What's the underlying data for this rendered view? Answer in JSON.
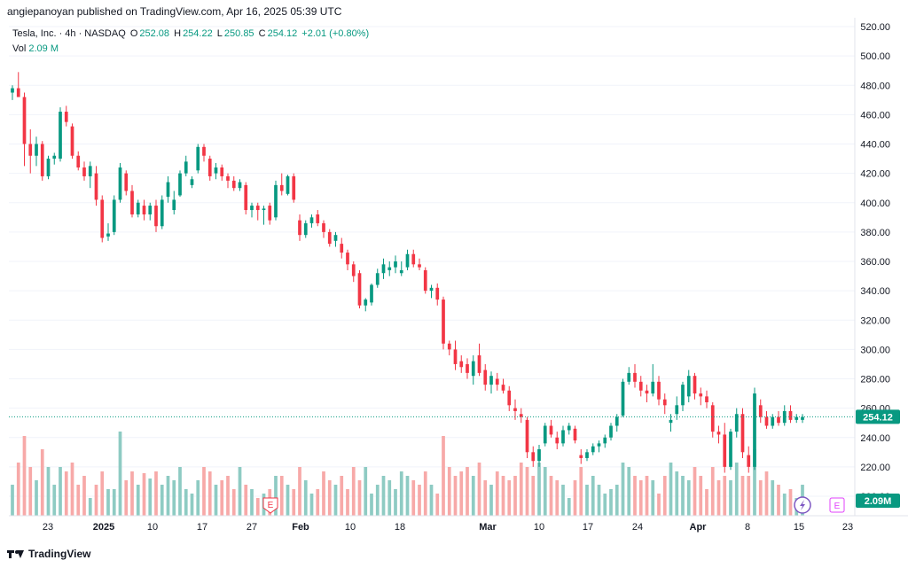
{
  "header": {
    "published": "angiepanoyan published on TradingView.com, Apr 16, 2025 05:39 UTC"
  },
  "legend": {
    "symbol": "Tesla, Inc. · 4h · NASDAQ",
    "open_label": "O",
    "open": "252.08",
    "high_label": "H",
    "high": "254.22",
    "low_label": "L",
    "low": "250.85",
    "close_label": "C",
    "close": "254.12",
    "change": "+2.01 (+0.80%)",
    "vol_label": "Vol",
    "vol_value": "2.09 M"
  },
  "footer": {
    "brand": "TradingView"
  },
  "colors": {
    "up": "#089981",
    "down": "#f23645",
    "vol_up": "#8ecbc3",
    "vol_down": "#f7a9a8",
    "grid": "#f0f3fa"
  },
  "events": {
    "earnings_marker": "E",
    "dividend_marker": "E"
  },
  "chart_data": {
    "type": "candlestick",
    "symbol": "TSLA",
    "interval": "4h",
    "y_axis_ticks": [
      "520.00",
      "500.00",
      "480.00",
      "460.00",
      "440.00",
      "420.00",
      "400.00",
      "380.00",
      "360.00",
      "340.00",
      "320.00",
      "300.00",
      "280.00",
      "260.00",
      "240.00",
      "220.00",
      "200.00"
    ],
    "ylim": [
      200,
      520
    ],
    "x_axis_ticks": [
      "23",
      "2025",
      "10",
      "17",
      "27",
      "Feb",
      "10",
      "18",
      "Mar",
      "10",
      "17",
      "24",
      "Apr",
      "8",
      "15",
      "23"
    ],
    "last_price_label": "254.12",
    "last_volume_label": "2.09M",
    "candles": [
      {
        "o": 475,
        "h": 480,
        "l": 470,
        "c": 478
      },
      {
        "o": 478,
        "h": 489,
        "l": 472,
        "c": 472
      },
      {
        "o": 472,
        "h": 475,
        "l": 425,
        "c": 440
      },
      {
        "o": 440,
        "h": 450,
        "l": 420,
        "c": 432
      },
      {
        "o": 432,
        "h": 445,
        "l": 425,
        "c": 440
      },
      {
        "o": 440,
        "h": 442,
        "l": 415,
        "c": 418
      },
      {
        "o": 418,
        "h": 432,
        "l": 416,
        "c": 430
      },
      {
        "o": 430,
        "h": 434,
        "l": 426,
        "c": 432
      },
      {
        "o": 430,
        "h": 465,
        "l": 428,
        "c": 462
      },
      {
        "o": 462,
        "h": 466,
        "l": 452,
        "c": 455
      },
      {
        "o": 452,
        "h": 454,
        "l": 430,
        "c": 432
      },
      {
        "o": 432,
        "h": 435,
        "l": 422,
        "c": 424
      },
      {
        "o": 424,
        "h": 428,
        "l": 415,
        "c": 418
      },
      {
        "o": 418,
        "h": 428,
        "l": 410,
        "c": 425
      },
      {
        "o": 420,
        "h": 425,
        "l": 398,
        "c": 402
      },
      {
        "o": 402,
        "h": 405,
        "l": 373,
        "c": 376
      },
      {
        "o": 377,
        "h": 386,
        "l": 374,
        "c": 379
      },
      {
        "o": 380,
        "h": 405,
        "l": 378,
        "c": 402
      },
      {
        "o": 402,
        "h": 427,
        "l": 400,
        "c": 424
      },
      {
        "o": 420,
        "h": 422,
        "l": 405,
        "c": 408
      },
      {
        "o": 408,
        "h": 412,
        "l": 390,
        "c": 392
      },
      {
        "o": 392,
        "h": 402,
        "l": 390,
        "c": 400
      },
      {
        "o": 398,
        "h": 402,
        "l": 388,
        "c": 392
      },
      {
        "o": 392,
        "h": 400,
        "l": 388,
        "c": 398
      },
      {
        "o": 398,
        "h": 402,
        "l": 380,
        "c": 384
      },
      {
        "o": 384,
        "h": 405,
        "l": 382,
        "c": 402
      },
      {
        "o": 404,
        "h": 418,
        "l": 400,
        "c": 414
      },
      {
        "o": 395,
        "h": 408,
        "l": 392,
        "c": 402
      },
      {
        "o": 405,
        "h": 422,
        "l": 404,
        "c": 420
      },
      {
        "o": 420,
        "h": 432,
        "l": 418,
        "c": 428
      },
      {
        "o": 412,
        "h": 418,
        "l": 410,
        "c": 416
      },
      {
        "o": 422,
        "h": 440,
        "l": 420,
        "c": 438
      },
      {
        "o": 438,
        "h": 440,
        "l": 428,
        "c": 432
      },
      {
        "o": 430,
        "h": 432,
        "l": 415,
        "c": 418
      },
      {
        "o": 420,
        "h": 427,
        "l": 416,
        "c": 424
      },
      {
        "o": 424,
        "h": 426,
        "l": 415,
        "c": 418
      },
      {
        "o": 418,
        "h": 420,
        "l": 410,
        "c": 415
      },
      {
        "o": 415,
        "h": 418,
        "l": 408,
        "c": 410
      },
      {
        "o": 410,
        "h": 416,
        "l": 408,
        "c": 414
      },
      {
        "o": 412,
        "h": 414,
        "l": 392,
        "c": 395
      },
      {
        "o": 395,
        "h": 400,
        "l": 390,
        "c": 398
      },
      {
        "o": 398,
        "h": 400,
        "l": 388,
        "c": 395
      },
      {
        "o": 395,
        "h": 398,
        "l": 385,
        "c": 396
      },
      {
        "o": 398,
        "h": 400,
        "l": 385,
        "c": 388
      },
      {
        "o": 390,
        "h": 415,
        "l": 388,
        "c": 412
      },
      {
        "o": 412,
        "h": 420,
        "l": 405,
        "c": 408
      },
      {
        "o": 406,
        "h": 419,
        "l": 405,
        "c": 418
      },
      {
        "o": 418,
        "h": 420,
        "l": 400,
        "c": 402
      },
      {
        "o": 388,
        "h": 392,
        "l": 374,
        "c": 378
      },
      {
        "o": 378,
        "h": 388,
        "l": 376,
        "c": 386
      },
      {
        "o": 386,
        "h": 392,
        "l": 383,
        "c": 390
      },
      {
        "o": 392,
        "h": 395,
        "l": 384,
        "c": 386
      },
      {
        "o": 386,
        "h": 388,
        "l": 376,
        "c": 380
      },
      {
        "o": 380,
        "h": 382,
        "l": 370,
        "c": 372
      },
      {
        "o": 374,
        "h": 380,
        "l": 370,
        "c": 378
      },
      {
        "o": 372,
        "h": 376,
        "l": 362,
        "c": 366
      },
      {
        "o": 366,
        "h": 368,
        "l": 354,
        "c": 358
      },
      {
        "o": 358,
        "h": 360,
        "l": 346,
        "c": 350
      },
      {
        "o": 352,
        "h": 354,
        "l": 328,
        "c": 330
      },
      {
        "o": 330,
        "h": 335,
        "l": 326,
        "c": 334
      },
      {
        "o": 332,
        "h": 345,
        "l": 330,
        "c": 344
      },
      {
        "o": 344,
        "h": 355,
        "l": 342,
        "c": 352
      },
      {
        "o": 352,
        "h": 362,
        "l": 348,
        "c": 358
      },
      {
        "o": 354,
        "h": 360,
        "l": 350,
        "c": 356
      },
      {
        "o": 356,
        "h": 364,
        "l": 352,
        "c": 360
      },
      {
        "o": 352,
        "h": 360,
        "l": 350,
        "c": 354
      },
      {
        "o": 356,
        "h": 368,
        "l": 354,
        "c": 365
      },
      {
        "o": 365,
        "h": 368,
        "l": 356,
        "c": 358
      },
      {
        "o": 358,
        "h": 362,
        "l": 354,
        "c": 356
      },
      {
        "o": 354,
        "h": 356,
        "l": 338,
        "c": 340
      },
      {
        "o": 340,
        "h": 344,
        "l": 335,
        "c": 342
      },
      {
        "o": 342,
        "h": 345,
        "l": 330,
        "c": 334
      },
      {
        "o": 334,
        "h": 336,
        "l": 300,
        "c": 304
      },
      {
        "o": 304,
        "h": 306,
        "l": 296,
        "c": 300
      },
      {
        "o": 300,
        "h": 306,
        "l": 286,
        "c": 290
      },
      {
        "o": 292,
        "h": 296,
        "l": 284,
        "c": 288
      },
      {
        "o": 290,
        "h": 294,
        "l": 280,
        "c": 284
      },
      {
        "o": 282,
        "h": 296,
        "l": 276,
        "c": 292
      },
      {
        "o": 296,
        "h": 304,
        "l": 282,
        "c": 284
      },
      {
        "o": 286,
        "h": 290,
        "l": 272,
        "c": 276
      },
      {
        "o": 276,
        "h": 285,
        "l": 270,
        "c": 282
      },
      {
        "o": 280,
        "h": 284,
        "l": 272,
        "c": 276
      },
      {
        "o": 276,
        "h": 280,
        "l": 270,
        "c": 272
      },
      {
        "o": 272,
        "h": 275,
        "l": 258,
        "c": 262
      },
      {
        "o": 260,
        "h": 266,
        "l": 252,
        "c": 258
      },
      {
        "o": 256,
        "h": 260,
        "l": 250,
        "c": 254
      },
      {
        "o": 252,
        "h": 254,
        "l": 226,
        "c": 230
      },
      {
        "o": 230,
        "h": 234,
        "l": 220,
        "c": 224
      },
      {
        "o": 224,
        "h": 235,
        "l": 220,
        "c": 232
      },
      {
        "o": 236,
        "h": 250,
        "l": 234,
        "c": 248
      },
      {
        "o": 248,
        "h": 252,
        "l": 240,
        "c": 242
      },
      {
        "o": 240,
        "h": 244,
        "l": 232,
        "c": 236
      },
      {
        "o": 236,
        "h": 248,
        "l": 234,
        "c": 245
      },
      {
        "o": 245,
        "h": 250,
        "l": 242,
        "c": 248
      },
      {
        "o": 246,
        "h": 248,
        "l": 236,
        "c": 238
      },
      {
        "o": 228,
        "h": 232,
        "l": 222,
        "c": 226
      },
      {
        "o": 226,
        "h": 232,
        "l": 224,
        "c": 230
      },
      {
        "o": 230,
        "h": 236,
        "l": 228,
        "c": 234
      },
      {
        "o": 234,
        "h": 238,
        "l": 230,
        "c": 236
      },
      {
        "o": 236,
        "h": 242,
        "l": 233,
        "c": 240
      },
      {
        "o": 240,
        "h": 250,
        "l": 238,
        "c": 248
      },
      {
        "o": 248,
        "h": 256,
        "l": 244,
        "c": 254
      },
      {
        "o": 255,
        "h": 280,
        "l": 254,
        "c": 278
      },
      {
        "o": 278,
        "h": 288,
        "l": 276,
        "c": 284
      },
      {
        "o": 284,
        "h": 290,
        "l": 274,
        "c": 278
      },
      {
        "o": 278,
        "h": 282,
        "l": 268,
        "c": 272
      },
      {
        "o": 272,
        "h": 276,
        "l": 264,
        "c": 270
      },
      {
        "o": 270,
        "h": 290,
        "l": 268,
        "c": 278
      },
      {
        "o": 278,
        "h": 282,
        "l": 262,
        "c": 266
      },
      {
        "o": 266,
        "h": 270,
        "l": 256,
        "c": 262
      },
      {
        "o": 250,
        "h": 256,
        "l": 244,
        "c": 252
      },
      {
        "o": 256,
        "h": 268,
        "l": 252,
        "c": 262
      },
      {
        "o": 262,
        "h": 278,
        "l": 258,
        "c": 276
      },
      {
        "o": 268,
        "h": 286,
        "l": 264,
        "c": 282
      },
      {
        "o": 282,
        "h": 284,
        "l": 266,
        "c": 270
      },
      {
        "o": 270,
        "h": 274,
        "l": 262,
        "c": 268
      },
      {
        "o": 268,
        "h": 272,
        "l": 260,
        "c": 264
      },
      {
        "o": 262,
        "h": 264,
        "l": 240,
        "c": 244
      },
      {
        "o": 244,
        "h": 248,
        "l": 236,
        "c": 242
      },
      {
        "o": 242,
        "h": 250,
        "l": 216,
        "c": 220
      },
      {
        "o": 220,
        "h": 246,
        "l": 218,
        "c": 244
      },
      {
        "o": 244,
        "h": 260,
        "l": 240,
        "c": 256
      },
      {
        "o": 256,
        "h": 260,
        "l": 226,
        "c": 230
      },
      {
        "o": 228,
        "h": 234,
        "l": 216,
        "c": 220
      },
      {
        "o": 220,
        "h": 274,
        "l": 218,
        "c": 270
      },
      {
        "o": 262,
        "h": 266,
        "l": 250,
        "c": 254
      },
      {
        "o": 254,
        "h": 258,
        "l": 246,
        "c": 248
      },
      {
        "o": 248,
        "h": 256,
        "l": 246,
        "c": 254
      },
      {
        "o": 254,
        "h": 258,
        "l": 248,
        "c": 250
      },
      {
        "o": 250,
        "h": 262,
        "l": 248,
        "c": 258
      },
      {
        "o": 258,
        "h": 262,
        "l": 250,
        "c": 252
      },
      {
        "o": 252,
        "h": 256,
        "l": 250,
        "c": 254
      },
      {
        "o": 252,
        "h": 256,
        "l": 250,
        "c": 254
      }
    ],
    "volume": [
      35,
      60,
      90,
      55,
      40,
      75,
      55,
      35,
      55,
      50,
      60,
      35,
      45,
      20,
      35,
      50,
      30,
      30,
      95,
      40,
      50,
      35,
      48,
      42,
      50,
      35,
      45,
      40,
      55,
      30,
      25,
      40,
      55,
      50,
      35,
      40,
      45,
      30,
      55,
      35,
      30,
      20,
      25,
      30,
      45,
      45,
      35,
      30,
      55,
      40,
      25,
      30,
      50,
      40,
      35,
      45,
      30,
      55,
      40,
      55,
      25,
      35,
      45,
      40,
      30,
      50,
      45,
      40,
      35,
      50,
      35,
      25,
      90,
      55,
      45,
      50,
      55,
      45,
      60,
      40,
      35,
      50,
      45,
      40,
      45,
      60,
      55,
      45,
      60,
      55,
      45,
      40,
      35,
      20,
      40,
      55,
      35,
      45,
      35,
      25,
      30,
      35,
      60,
      55,
      45,
      40,
      45,
      40,
      25,
      45,
      60,
      50,
      45,
      40,
      55,
      45,
      30,
      55,
      40,
      45,
      40,
      60,
      45,
      45,
      75,
      40,
      50,
      40,
      35,
      25,
      30,
      20,
      35,
      30
    ]
  }
}
